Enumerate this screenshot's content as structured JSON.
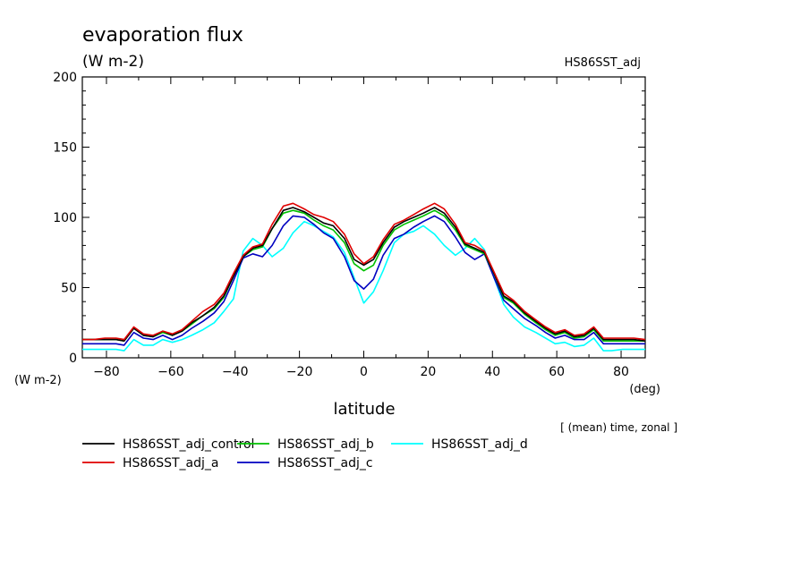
{
  "chart_data": {
    "type": "line",
    "title": "evaporation flux",
    "subtitle": "(W m-2)",
    "experiment": "HS86SST_adj",
    "xlabel": "latitude",
    "xunit": "(deg)",
    "yunit": "(W m-2)",
    "note": "[ (mean) time, zonal ]",
    "xlim": [
      -87.5,
      87.5
    ],
    "ylim": [
      0,
      200
    ],
    "xticks": [
      -80,
      -60,
      -40,
      -20,
      0,
      20,
      40,
      60,
      80
    ],
    "yticks": [
      0,
      50,
      100,
      150,
      200
    ],
    "tick_labels_x": [
      "−80",
      "−60",
      "−40",
      "−20",
      "0",
      "20",
      "40",
      "60",
      "80"
    ],
    "tick_labels_y": [
      "0",
      "50",
      "100",
      "150",
      "200"
    ],
    "grid": false,
    "legend_position": "bottom",
    "x": [
      -87.5,
      -84,
      -80.5,
      -77,
      -74.5,
      -71.5,
      -68.5,
      -65.5,
      -62.5,
      -59.5,
      -56.5,
      -53.5,
      -50,
      -46.5,
      -43.5,
      -40.5,
      -37.5,
      -34.5,
      -31.5,
      -28.5,
      -25,
      -22,
      -18.5,
      -15.5,
      -12.5,
      -9.5,
      -6,
      -3,
      0,
      3,
      6,
      9.5,
      12.5,
      15.5,
      18.5,
      22,
      25,
      28.5,
      31.5,
      34.5,
      37.5,
      40.5,
      43.5,
      46.5,
      50,
      53.5,
      56.5,
      59.5,
      62.5,
      65.5,
      68.5,
      71.5,
      74.5,
      77,
      80.5,
      84,
      87.5
    ],
    "series": [
      {
        "name": "HS86SST_adj_control",
        "color": "#000000",
        "values": [
          13,
          13,
          13,
          13,
          12,
          21,
          16,
          15,
          19,
          16,
          19,
          25,
          30,
          36,
          44,
          58,
          72,
          78,
          80,
          92,
          105,
          107,
          104,
          100,
          96,
          94,
          85,
          70,
          66,
          70,
          82,
          93,
          97,
          100,
          103,
          107,
          103,
          93,
          81,
          78,
          75,
          60,
          44,
          40,
          32,
          26,
          21,
          17,
          19,
          15,
          16,
          21,
          13,
          13,
          13,
          13,
          12
        ]
      },
      {
        "name": "HS86SST_adj_a",
        "color": "#e00000",
        "values": [
          13,
          13,
          14,
          14,
          13,
          22,
          17,
          16,
          19,
          17,
          20,
          26,
          33,
          38,
          46,
          60,
          73,
          79,
          81,
          95,
          108,
          110,
          106,
          102,
          100,
          97,
          88,
          74,
          67,
          72,
          84,
          95,
          98,
          102,
          106,
          110,
          106,
          95,
          82,
          80,
          76,
          61,
          46,
          41,
          33,
          27,
          22,
          18,
          20,
          16,
          17,
          22,
          14,
          14,
          14,
          14,
          13
        ]
      },
      {
        "name": "HS86SST_adj_b",
        "color": "#00c000",
        "values": [
          13,
          13,
          13,
          13,
          12,
          21,
          16,
          15,
          18,
          16,
          19,
          24,
          30,
          35,
          43,
          58,
          72,
          77,
          79,
          92,
          103,
          105,
          103,
          98,
          94,
          91,
          82,
          67,
          62,
          66,
          80,
          91,
          95,
          98,
          101,
          105,
          101,
          91,
          80,
          77,
          74,
          60,
          43,
          39,
          31,
          25,
          20,
          16,
          18,
          14,
          15,
          20,
          12,
          12,
          12,
          12,
          12
        ]
      },
      {
        "name": "HS86SST_adj_c",
        "color": "#0000c0",
        "values": [
          10,
          10,
          10,
          10,
          9,
          18,
          14,
          13,
          16,
          13,
          16,
          21,
          26,
          32,
          40,
          55,
          71,
          74,
          72,
          80,
          94,
          101,
          100,
          95,
          89,
          85,
          72,
          55,
          49,
          56,
          73,
          85,
          88,
          93,
          97,
          101,
          97,
          86,
          75,
          70,
          74,
          57,
          41,
          35,
          28,
          23,
          18,
          14,
          16,
          13,
          13,
          18,
          10,
          10,
          10,
          10,
          10
        ]
      },
      {
        "name": "HS86SST_adj_d",
        "color": "#00ffff",
        "values": [
          6,
          6,
          6,
          6,
          5,
          13,
          9,
          9,
          13,
          11,
          13,
          16,
          20,
          25,
          33,
          42,
          76,
          85,
          80,
          72,
          78,
          89,
          97,
          94,
          90,
          86,
          75,
          57,
          39,
          47,
          62,
          82,
          88,
          90,
          94,
          88,
          80,
          73,
          78,
          85,
          77,
          57,
          38,
          29,
          22,
          18,
          14,
          10,
          11,
          8,
          9,
          14,
          5,
          5,
          6,
          6,
          6
        ]
      }
    ]
  }
}
